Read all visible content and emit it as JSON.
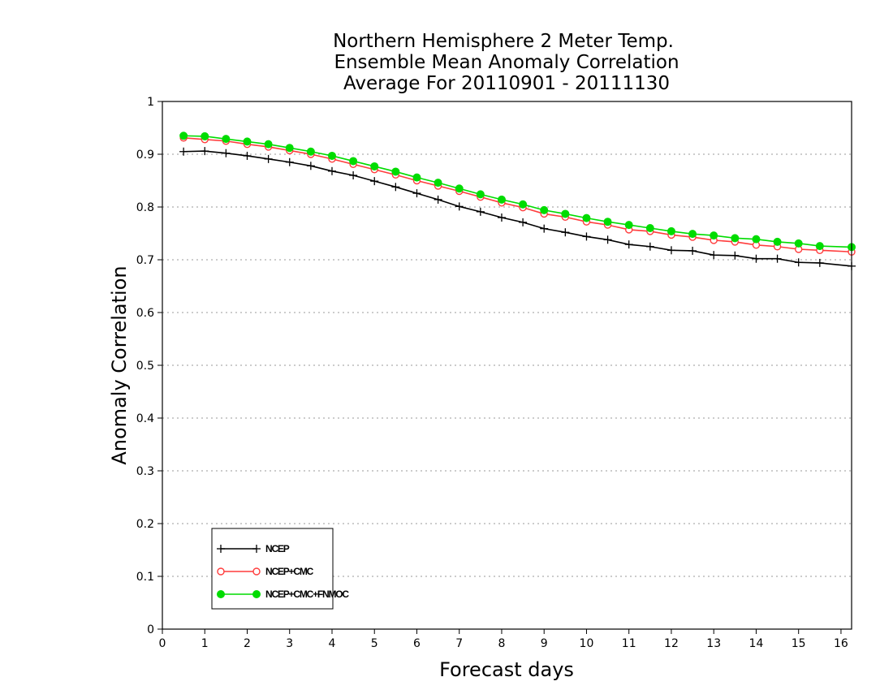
{
  "chart_data": {
    "type": "line",
    "title": [
      "Northern Hemisphere 2 Meter Temp.",
      "Ensemble Mean Anomaly Correlation",
      "Average For 20110901 - 20111130"
    ],
    "xlabel": "Forecast days",
    "ylabel": "Anomaly Correlation",
    "xlim": [
      0,
      16.25
    ],
    "ylim": [
      0,
      1
    ],
    "x_ticks": [
      0,
      1,
      2,
      3,
      4,
      5,
      6,
      7,
      8,
      9,
      10,
      11,
      12,
      13,
      14,
      15,
      16
    ],
    "x_tick_labels": [
      "0",
      "1",
      "2",
      "3",
      "4",
      "5",
      "6",
      "7",
      "8",
      "9",
      "10",
      "11",
      "12",
      "13",
      "14",
      "15",
      "16"
    ],
    "y_ticks": [
      0,
      0.1,
      0.2,
      0.3,
      0.4,
      0.5,
      0.6,
      0.7,
      0.8,
      0.9,
      1
    ],
    "y_tick_labels": [
      "0",
      "0.1",
      "0.2",
      "0.3",
      "0.4",
      "0.5",
      "0.6",
      "0.7",
      "0.8",
      "0.9",
      "1"
    ],
    "grid": "horizontal dotted",
    "legend_position": "bottom-left",
    "x": [
      0.5,
      1,
      1.5,
      2,
      2.5,
      3,
      3.5,
      4,
      4.5,
      5,
      5.5,
      6,
      6.5,
      7,
      7.5,
      8,
      8.5,
      9,
      9.5,
      10,
      10.5,
      11,
      11.5,
      12,
      12.5,
      13,
      13.5,
      14,
      14.5,
      15,
      15.5,
      16.25
    ],
    "series": [
      {
        "name": "NCEP",
        "color": "#000000",
        "marker": "plus",
        "values": [
          0.905,
          0.906,
          0.902,
          0.897,
          0.891,
          0.885,
          0.878,
          0.868,
          0.86,
          0.849,
          0.838,
          0.826,
          0.814,
          0.801,
          0.791,
          0.78,
          0.771,
          0.759,
          0.752,
          0.744,
          0.738,
          0.729,
          0.725,
          0.718,
          0.717,
          0.709,
          0.708,
          0.702,
          0.702,
          0.695,
          0.694,
          0.688
        ]
      },
      {
        "name": "NCEP+CMC",
        "color": "#ff3c3c",
        "marker": "open-circle",
        "values": [
          0.931,
          0.928,
          0.925,
          0.919,
          0.914,
          0.907,
          0.9,
          0.891,
          0.881,
          0.871,
          0.861,
          0.85,
          0.84,
          0.83,
          0.819,
          0.808,
          0.799,
          0.787,
          0.781,
          0.772,
          0.766,
          0.757,
          0.754,
          0.747,
          0.743,
          0.737,
          0.734,
          0.728,
          0.725,
          0.72,
          0.718,
          0.715
        ]
      },
      {
        "name": "NCEP+CMC+FNMOC",
        "color": "#00dc00",
        "marker": "filled-circle",
        "values": [
          0.935,
          0.934,
          0.929,
          0.924,
          0.919,
          0.912,
          0.905,
          0.897,
          0.887,
          0.877,
          0.867,
          0.856,
          0.846,
          0.835,
          0.824,
          0.814,
          0.805,
          0.794,
          0.787,
          0.779,
          0.772,
          0.766,
          0.76,
          0.754,
          0.749,
          0.746,
          0.741,
          0.739,
          0.734,
          0.731,
          0.726,
          0.724
        ]
      }
    ]
  }
}
